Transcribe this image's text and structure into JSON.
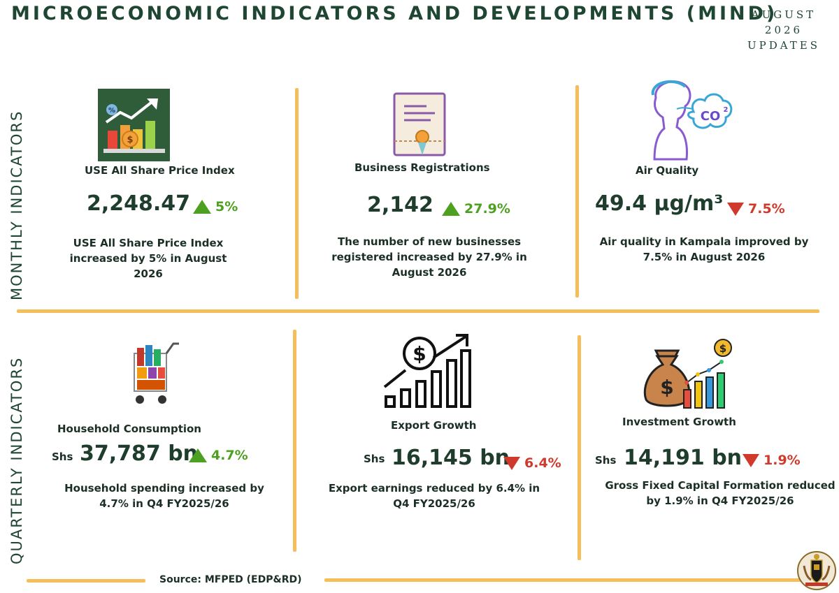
{
  "header": {
    "title": "MICROECONOMIC INDICATORS AND DEVELOPMENTS (MIND)",
    "period_line1": "AUGUST",
    "period_line2": "2026",
    "period_line3": "UPDATES"
  },
  "sections": {
    "monthly_label": "MONTHLY INDICATORS",
    "quarterly_label": "QUARTERLY INDICATORS"
  },
  "monthly": [
    {
      "title": "USE All Share Price Index",
      "value": "2,248.47",
      "change": "5%",
      "direction": "up",
      "icon": "growth-chart-icon",
      "desc": "USE All Share Price Index increased by 5% in August 2026"
    },
    {
      "title": "Business Registrations",
      "value": "2,142",
      "change": "27.9%",
      "direction": "up",
      "icon": "certificate-icon",
      "desc": "The number of new businesses registered increased by 27.9% in August 2026"
    },
    {
      "title": "Air Quality",
      "value": "49.4 µg/m³",
      "change": "7.5%",
      "direction": "down",
      "icon": "co2-person-icon",
      "desc": "Air quality in Kampala improved by 7.5% in August 2026"
    }
  ],
  "quarterly": [
    {
      "title": "Household Consumption",
      "currency": "Shs",
      "value": "37,787 bn",
      "change": "4.7%",
      "direction": "up",
      "icon": "shopping-cart-icon",
      "desc": "Household spending increased by 4.7% in Q4 FY2025/26"
    },
    {
      "title": "Export Growth",
      "currency": "Shs",
      "value": "16,145 bn",
      "change": "6.4%",
      "direction": "down",
      "icon": "dollar-growth-icon",
      "desc": "Export earnings reduced by 6.4% in Q4 FY2025/26"
    },
    {
      "title": "Investment Growth",
      "currency": "Shs",
      "value": "14,191 bn",
      "change": "1.9%",
      "direction": "down",
      "icon": "money-bag-chart-icon",
      "desc": "Gross Fixed Capital Formation reduced by 1.9% in Q4 FY2025/26"
    }
  ],
  "footer": {
    "source": "Source: MFPED (EDP&RD)",
    "emblem": "coat-of-arms-icon"
  },
  "colors": {
    "accent_line": "#f5be5a",
    "title_green": "#1e4632",
    "up_green": "#4ea021",
    "down_red": "#cf3a2c"
  }
}
